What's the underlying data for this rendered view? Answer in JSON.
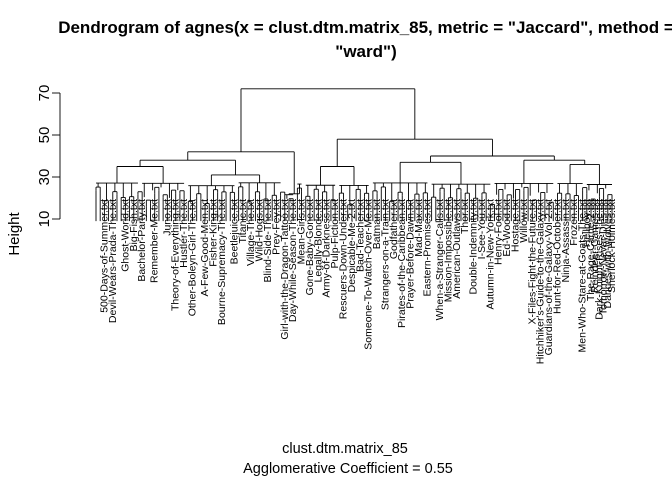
{
  "chart_data": {
    "type": "dendrogram",
    "title_line1": "Dendrogram of  agnes(x = clust.dtm.matrix_85, metric = \"Jaccard\", method =",
    "title_line2": "\"ward\")",
    "ylabel": "Height",
    "xlabel": "clust.dtm.matrix_85",
    "sublabel": "Agglomerative Coefficient =  0.55",
    "yticks": [
      10,
      30,
      50,
      70
    ],
    "ylim": [
      10,
      76
    ],
    "leaf_count": 124,
    "leaf_labels": [
      {
        "pos": 3,
        "text": "500-Days-of-Summer.txt"
      },
      {
        "pos": 5,
        "text": "Devil-Wears-Prada-The.txt"
      },
      {
        "pos": 8,
        "text": "Ghost-World.txt"
      },
      {
        "pos": 10,
        "text": "Big-Fish.txt"
      },
      {
        "pos": 12,
        "text": "Bachelor-Party.txt"
      },
      {
        "pos": 15,
        "text": "Remember-Me.txt"
      },
      {
        "pos": 18,
        "text": "Juno.txt"
      },
      {
        "pos": 20,
        "text": "Theory-of-Everything.txt"
      },
      {
        "pos": 22,
        "text": "Hustler-The.txt"
      },
      {
        "pos": 24,
        "text": "Other-Boleyn-Girl-The.txt"
      },
      {
        "pos": 27,
        "text": "A-Few-Good-Men.txt"
      },
      {
        "pos": 29,
        "text": "Fisher-King.txt"
      },
      {
        "pos": 31,
        "text": "Bourne-Supremacy-The.txt"
      },
      {
        "pos": 34,
        "text": "Beetlejuice.txt"
      },
      {
        "pos": 36,
        "text": "Titanic.txt"
      },
      {
        "pos": 38,
        "text": "Village-The.txt"
      },
      {
        "pos": 40,
        "text": "Wild-Hogs.txt"
      },
      {
        "pos": 42,
        "text": "Blind-Side-The.txt"
      },
      {
        "pos": 44,
        "text": "Prey-Fey.txt"
      },
      {
        "pos": 46,
        "text": "Girl-with-the-Dragon-Tattoo.txt"
      },
      {
        "pos": 48,
        "text": "Day-While-Season-The.txt"
      },
      {
        "pos": 50,
        "text": "Mean-Girls.txt"
      },
      {
        "pos": 52,
        "text": "Gone-Baby-Gone.txt"
      },
      {
        "pos": 54,
        "text": "Legally-Blonde.txt"
      },
      {
        "pos": 56,
        "text": "Army-of-Darkness.txt"
      },
      {
        "pos": 58,
        "text": "Pulp-Fiction.txt"
      },
      {
        "pos": 60,
        "text": "Rescuers-Down-Under.txt"
      },
      {
        "pos": 62,
        "text": "Despicable-Me-2.txt"
      },
      {
        "pos": 64,
        "text": "Bad-Teacher.txt"
      },
      {
        "pos": 66,
        "text": "Someone-To-Watch-Over-Me.txt"
      },
      {
        "pos": 68,
        "text": "Batman.txt"
      },
      {
        "pos": 70,
        "text": "Strangers-on-a-Train.txt"
      },
      {
        "pos": 72,
        "text": "Godfather.txt"
      },
      {
        "pos": 74,
        "text": "Pirates-of-the-Caribbean.txt"
      },
      {
        "pos": 76,
        "text": "Prayer-Before-Dawn.txt"
      },
      {
        "pos": 78,
        "text": "Mad-Max.txt"
      },
      {
        "pos": 80,
        "text": "Eastern-Promises.txt"
      },
      {
        "pos": 83,
        "text": "When-a-Stranger-Calls.txt"
      },
      {
        "pos": 85,
        "text": "Mission-Impossible.txt"
      },
      {
        "pos": 87,
        "text": "American-Outlaws.txt"
      },
      {
        "pos": 89,
        "text": "Thor.txt"
      },
      {
        "pos": 91,
        "text": "Double-Indemnity.txt"
      },
      {
        "pos": 93,
        "text": "I-See-You.txt"
      },
      {
        "pos": 95,
        "text": "Autumn-in-New-York.txt"
      },
      {
        "pos": 97,
        "text": "Henry-Fool.txt"
      },
      {
        "pos": 99,
        "text": "Ed-Wood.txt"
      },
      {
        "pos": 101,
        "text": "Hostage.txt"
      },
      {
        "pos": 103,
        "text": "Willow.txt"
      },
      {
        "pos": 105,
        "text": "X-Files-Fight-the-Future.txt"
      },
      {
        "pos": 107,
        "text": "Hitchhiker's-Guide-to-the-Galaxy.txt"
      },
      {
        "pos": 109,
        "text": "Guardians-of-the-Galaxy-Vol-2.txt"
      },
      {
        "pos": 111,
        "text": "Hunt-for-Red-October.txt"
      },
      {
        "pos": 113,
        "text": "Ninja-Assassin.txt"
      },
      {
        "pos": 115,
        "text": "Frozen.txt"
      },
      {
        "pos": 117,
        "text": "Men-Who-Stare-at-Goats-The.txt"
      },
      {
        "pos": 118,
        "text": "Hellboy.txt"
      },
      {
        "pos": 119,
        "text": "The-Rage-Carrie-2.txt"
      },
      {
        "pos": 120,
        "text": "Reindeer-Games.txt"
      },
      {
        "pos": 121,
        "text": "Dark-Knight-Rises-The.txt"
      },
      {
        "pos": 122,
        "text": "Tomorrow-Never-Dies.txt"
      },
      {
        "pos": 123,
        "text": "Dances-with-Wolves.txt"
      },
      {
        "pos": 124,
        "text": "Sherlock-Holmes.txt"
      }
    ],
    "merges": [
      {
        "a": [
          1,
          50
        ],
        "b": [
          51,
          124
        ],
        "height": 72
      },
      {
        "a": [
          1,
          45
        ],
        "b": [
          46,
          50
        ],
        "height": 42
      },
      {
        "a": [
          51,
          66
        ],
        "b": [
          67,
          124
        ],
        "height": 48
      },
      {
        "a": [
          1,
          22
        ],
        "b": [
          23,
          45
        ],
        "height": 38
      },
      {
        "a": [
          67,
          95
        ],
        "b": [
          96,
          124
        ],
        "height": 40
      },
      {
        "a": [
          23,
          34
        ],
        "b": [
          35,
          45
        ],
        "height": 31
      },
      {
        "a": [
          51,
          58
        ],
        "b": [
          59,
          66
        ],
        "height": 35
      },
      {
        "a": [
          96,
          110
        ],
        "b": [
          111,
          124
        ],
        "height": 38
      },
      {
        "a": [
          1,
          11
        ],
        "b": [
          12,
          22
        ],
        "height": 35
      },
      {
        "a": [
          46,
          48
        ],
        "b": [
          49,
          50
        ],
        "height": 22
      },
      {
        "a": [
          67,
          80
        ],
        "b": [
          81,
          95
        ],
        "height": 37
      },
      {
        "a": [
          111,
          117
        ],
        "b": [
          118,
          124
        ],
        "height": 36
      }
    ]
  }
}
